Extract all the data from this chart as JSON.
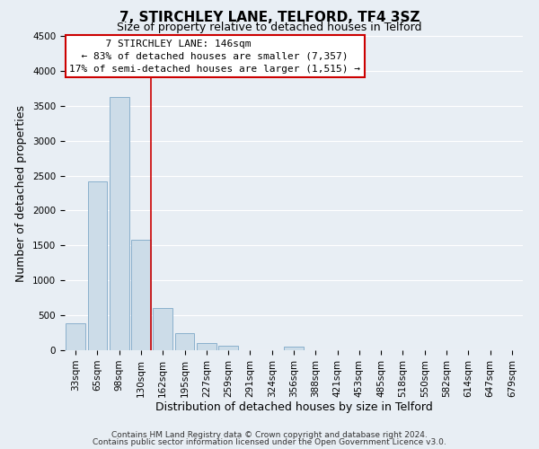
{
  "title": "7, STIRCHLEY LANE, TELFORD, TF4 3SZ",
  "subtitle": "Size of property relative to detached houses in Telford",
  "xlabel": "Distribution of detached houses by size in Telford",
  "ylabel": "Number of detached properties",
  "bar_labels": [
    "33sqm",
    "65sqm",
    "98sqm",
    "130sqm",
    "162sqm",
    "195sqm",
    "227sqm",
    "259sqm",
    "291sqm",
    "324sqm",
    "356sqm",
    "388sqm",
    "421sqm",
    "453sqm",
    "485sqm",
    "518sqm",
    "550sqm",
    "582sqm",
    "614sqm",
    "647sqm",
    "679sqm"
  ],
  "bar_heights": [
    380,
    2420,
    3620,
    1580,
    600,
    240,
    100,
    60,
    0,
    0,
    50,
    0,
    0,
    0,
    0,
    0,
    0,
    0,
    0,
    0,
    0
  ],
  "bar_color": "#ccdce8",
  "bar_edge_color": "#8ab0cc",
  "ylim": [
    0,
    4500
  ],
  "yticks": [
    0,
    500,
    1000,
    1500,
    2000,
    2500,
    3000,
    3500,
    4000,
    4500
  ],
  "annotation_title": "7 STIRCHLEY LANE: 146sqm",
  "annotation_line1": "← 83% of detached houses are smaller (7,357)",
  "annotation_line2": "17% of semi-detached houses are larger (1,515) →",
  "annotation_box_color": "#ffffff",
  "annotation_box_edge": "#cc0000",
  "footer_line1": "Contains HM Land Registry data © Crown copyright and database right 2024.",
  "footer_line2": "Contains public sector information licensed under the Open Government Licence v3.0.",
  "background_color": "#e8eef4",
  "grid_color": "#ffffff",
  "title_fontsize": 11,
  "subtitle_fontsize": 9,
  "axis_label_fontsize": 9,
  "tick_fontsize": 7.5,
  "annotation_fontsize": 8,
  "footer_fontsize": 6.5
}
